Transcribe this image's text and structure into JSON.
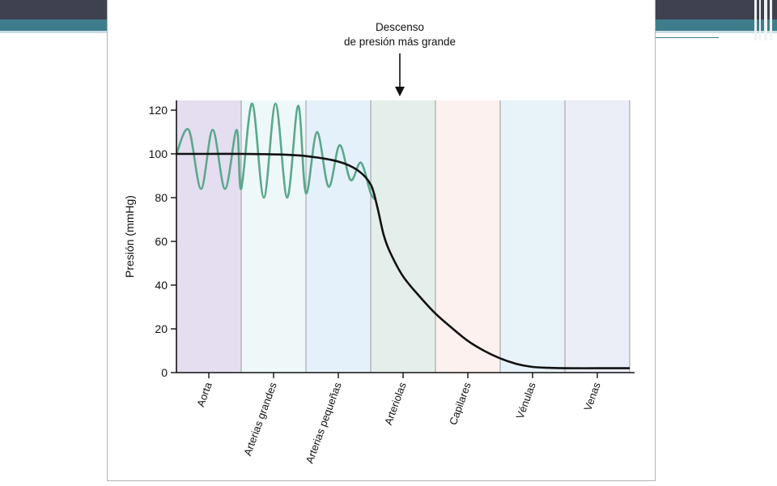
{
  "slide": {
    "accent_dark": "#3f4150",
    "accent_teal": "#3f7d8c",
    "accent_light": "#c8dde3"
  },
  "chart_data": {
    "type": "line",
    "title": "",
    "xlabel": "",
    "ylabel": "Presión (mmHg)",
    "ylim": [
      0,
      120
    ],
    "yticks": [
      0,
      20,
      40,
      60,
      80,
      100,
      120
    ],
    "grid": false,
    "annotation": {
      "lines": [
        "Descenso",
        "de presión más grande"
      ],
      "target_category": "Arteriolas"
    },
    "categories": [
      "Aorta",
      "Arterias grandes",
      "Arterias pequeñas",
      "Arteriolas",
      "Capilares",
      "Vénulas",
      "Venas"
    ],
    "band_colors": [
      "#e4def0",
      "#eef8f8",
      "#e5f1fa",
      "#e4eeea",
      "#fdf1ef",
      "#e7f2f9",
      "#ebedf7"
    ],
    "series": [
      {
        "role": "mean",
        "color": "#111111",
        "x": [
          0.0,
          0.5,
          1.0,
          1.5,
          2.0,
          2.5,
          2.8,
          3.0,
          3.1,
          3.2,
          3.3,
          3.5,
          3.75,
          4.0,
          4.25,
          4.5,
          4.75,
          5.0,
          5.25,
          5.5,
          5.75,
          6.0,
          6.5,
          7.0
        ],
        "y": [
          100,
          100,
          100,
          99.8,
          99,
          96.5,
          92.5,
          86,
          76,
          63,
          55,
          44,
          35,
          27,
          20.5,
          14.5,
          10,
          6.5,
          4,
          2.6,
          2.2,
          2,
          2,
          2
        ]
      },
      {
        "role": "pulsatile",
        "color": "#5aa88b",
        "x": [
          0.0,
          0.19,
          0.38,
          0.56,
          0.75,
          0.93,
          1.0,
          1.17,
          1.35,
          1.53,
          1.71,
          1.88,
          2.0,
          2.17,
          2.35,
          2.52,
          2.69,
          2.85,
          3.0,
          3.08
        ],
        "y": [
          100,
          111,
          84,
          111,
          84,
          111,
          84,
          123,
          80,
          123,
          80,
          122,
          82,
          110,
          85,
          104,
          88,
          96,
          82,
          79
        ]
      }
    ]
  }
}
